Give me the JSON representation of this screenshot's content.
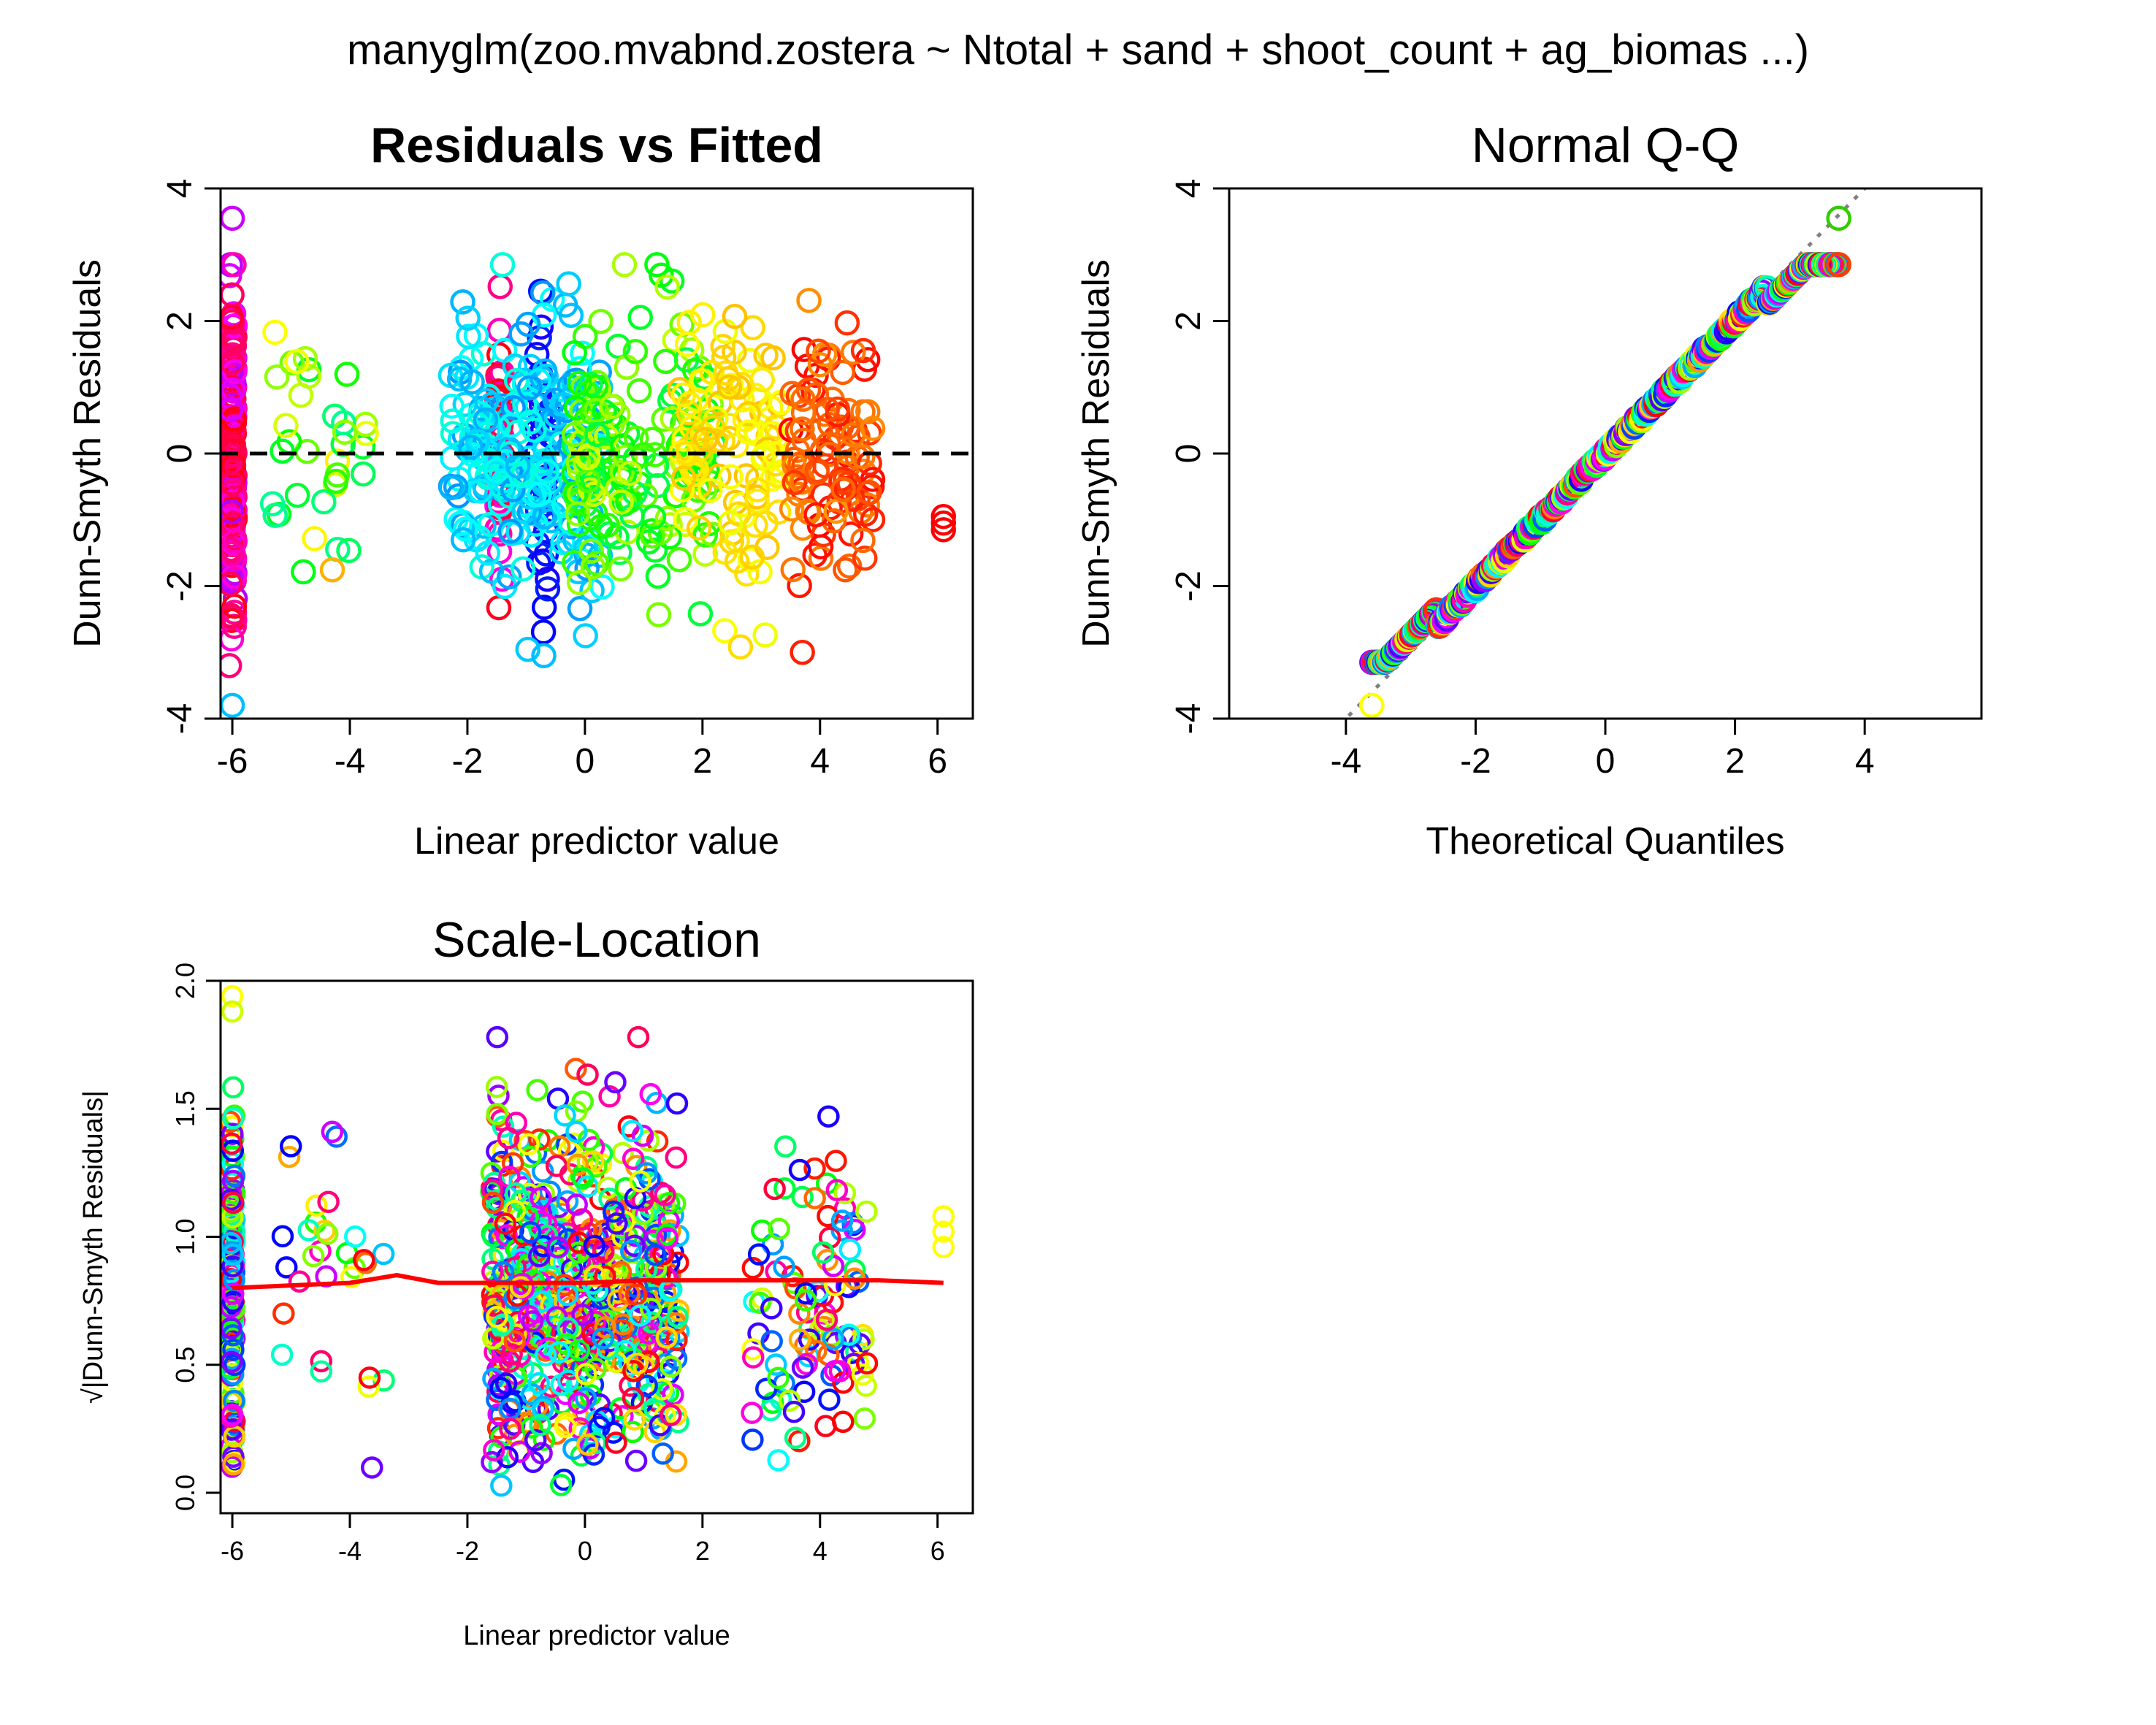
{
  "figure_title": "manyglm(zoo.mvabnd.zostera ~ Ntotal + sand + shoot_count + ag_biomas ...)",
  "chart_data": [
    {
      "type": "scatter",
      "title": "Residuals vs Fitted",
      "xlabel": "Linear predictor value",
      "ylabel": "Dunn-Smyth Residuals",
      "xlim": [
        -6.2,
        6.6
      ],
      "ylim": [
        -4.0,
        4.0
      ],
      "xticks": [
        -6,
        -4,
        -2,
        0,
        2,
        4,
        6
      ],
      "yticks": [
        -4,
        -2,
        0,
        2,
        4
      ],
      "xtick_labels": [
        "-6",
        "-4",
        "-2",
        "0",
        "2",
        "4",
        "6"
      ],
      "ytick_labels": [
        "-4",
        "-2",
        "0",
        "2",
        "4"
      ],
      "reference_line": {
        "y": 0,
        "style": "dashed",
        "color": "#000000"
      },
      "clusters": [
        {
          "x_center": -6.0,
          "x_spread": 0.05,
          "y_mean": 0.0,
          "y_sd": 1.2,
          "n": 170,
          "hue_range": [
            280,
            360
          ]
        },
        {
          "x_center": -1.45,
          "x_spread": 0.05,
          "y_mean": 0.0,
          "y_sd": 0.9,
          "n": 60,
          "hue_range": [
            300,
            360
          ]
        },
        {
          "x_center": -0.7,
          "x_spread": 0.12,
          "y_mean": 0.0,
          "y_sd": 1.0,
          "n": 40,
          "hue_range": [
            230,
            250
          ]
        },
        {
          "x_center": -1.0,
          "x_spread": 1.3,
          "y_mean": 0.0,
          "y_sd": 0.95,
          "n": 240,
          "hue_range": [
            170,
            205
          ]
        },
        {
          "x_center": 1.0,
          "x_spread": 1.2,
          "y_mean": 0.0,
          "y_sd": 0.95,
          "n": 170,
          "hue_range": [
            70,
            140
          ]
        },
        {
          "x_center": 2.5,
          "x_spread": 0.9,
          "y_mean": 0.0,
          "y_sd": 1.0,
          "n": 110,
          "hue_range": [
            45,
            65
          ]
        },
        {
          "x_center": 4.2,
          "x_spread": 0.7,
          "y_mean": 0.1,
          "y_sd": 0.9,
          "n": 110,
          "hue_range": [
            0,
            35
          ]
        },
        {
          "x_center": -4.5,
          "x_spread": 0.9,
          "y_mean": 0.0,
          "y_sd": 1.1,
          "n": 35,
          "hue_range": [
            40,
            160
          ]
        }
      ],
      "highlight_points": [
        {
          "x": -6.0,
          "y": 3.55,
          "color": "#cc00ff"
        },
        {
          "x": -6.0,
          "y": -3.8,
          "color": "#00bfff"
        },
        {
          "x": 6.1,
          "y": -0.95,
          "color": "#ff0000"
        },
        {
          "x": 6.1,
          "y": -1.05,
          "color": "#ff0000"
        },
        {
          "x": 6.1,
          "y": -1.15,
          "color": "#ff0000"
        },
        {
          "x": 3.7,
          "y": -3.0,
          "color": "#ff2000"
        },
        {
          "x": -0.7,
          "y": -3.05,
          "color": "#00bfff"
        }
      ]
    },
    {
      "type": "scatter",
      "title": "Normal Q-Q",
      "xlabel": "Theoretical Quantiles",
      "ylabel": "Dunn-Smyth Residuals",
      "xlim": [
        -5.8,
        5.8
      ],
      "ylim": [
        -4.0,
        4.0
      ],
      "xticks": [
        -4,
        -2,
        0,
        2,
        4
      ],
      "yticks": [
        -4,
        -2,
        0,
        2,
        4
      ],
      "xtick_labels": [
        "-4",
        "-2",
        "0",
        "2",
        "4"
      ],
      "ytick_labels": [
        "-4",
        "-2",
        "0",
        "2",
        "4"
      ],
      "reference_line": {
        "intercept": 0,
        "slope": 1,
        "style": "dotted",
        "color": "#808080"
      },
      "quantile_range": [
        -3.6,
        3.6
      ],
      "extreme_points": [
        {
          "x": -3.6,
          "y": -3.8,
          "color": "#ffff00"
        },
        {
          "x": 3.6,
          "y": 3.55,
          "color": "#33cc00"
        }
      ]
    },
    {
      "type": "scatter",
      "title": "Scale-Location",
      "xlabel": "Linear predictor value",
      "ylabel": "√|Dunn-Smyth Residuals|",
      "xlim": [
        -6.2,
        6.6
      ],
      "ylim": [
        -0.08,
        2.0
      ],
      "xticks": [
        -6,
        -4,
        -2,
        0,
        2,
        4,
        6
      ],
      "yticks": [
        0.0,
        0.5,
        1.0,
        1.5,
        2.0
      ],
      "xtick_labels": [
        "-6",
        "-4",
        "-2",
        "0",
        "2",
        "4",
        "6"
      ],
      "ytick_labels": [
        "0.0",
        "0.5",
        "1.0",
        "1.5",
        "2.0"
      ],
      "smooth_line": {
        "color": "#ff0000",
        "x": [
          -6.0,
          -4.0,
          -3.2,
          -2.5,
          -1.0,
          0.0,
          1.0,
          2.0,
          3.0,
          4.0,
          5.0,
          6.1
        ],
        "y": [
          0.8,
          0.82,
          0.85,
          0.82,
          0.82,
          0.82,
          0.83,
          0.83,
          0.83,
          0.83,
          0.83,
          0.82
        ]
      },
      "clusters": [
        {
          "x_center": -6.0,
          "x_spread": 0.04,
          "n": 170
        },
        {
          "x_center": -1.45,
          "x_spread": 0.05,
          "n": 60
        },
        {
          "x_center": 0.0,
          "x_spread": 1.6,
          "n": 650
        },
        {
          "x_center": 3.8,
          "x_spread": 1.0,
          "n": 110
        },
        {
          "x_center": -4.3,
          "x_spread": 0.9,
          "n": 30
        }
      ],
      "highlight_points": [
        {
          "x": -6.0,
          "y": 1.94,
          "color": "#ffff00"
        },
        {
          "x": -6.0,
          "y": 1.88,
          "color": "#ccff00"
        },
        {
          "x": 6.1,
          "y": 1.08,
          "color": "#ffff00"
        },
        {
          "x": 6.1,
          "y": 1.02,
          "color": "#ffff00"
        },
        {
          "x": 6.1,
          "y": 0.96,
          "color": "#ffff00"
        },
        {
          "x": -4.3,
          "y": 1.41,
          "color": "#cc00ff"
        }
      ]
    }
  ]
}
